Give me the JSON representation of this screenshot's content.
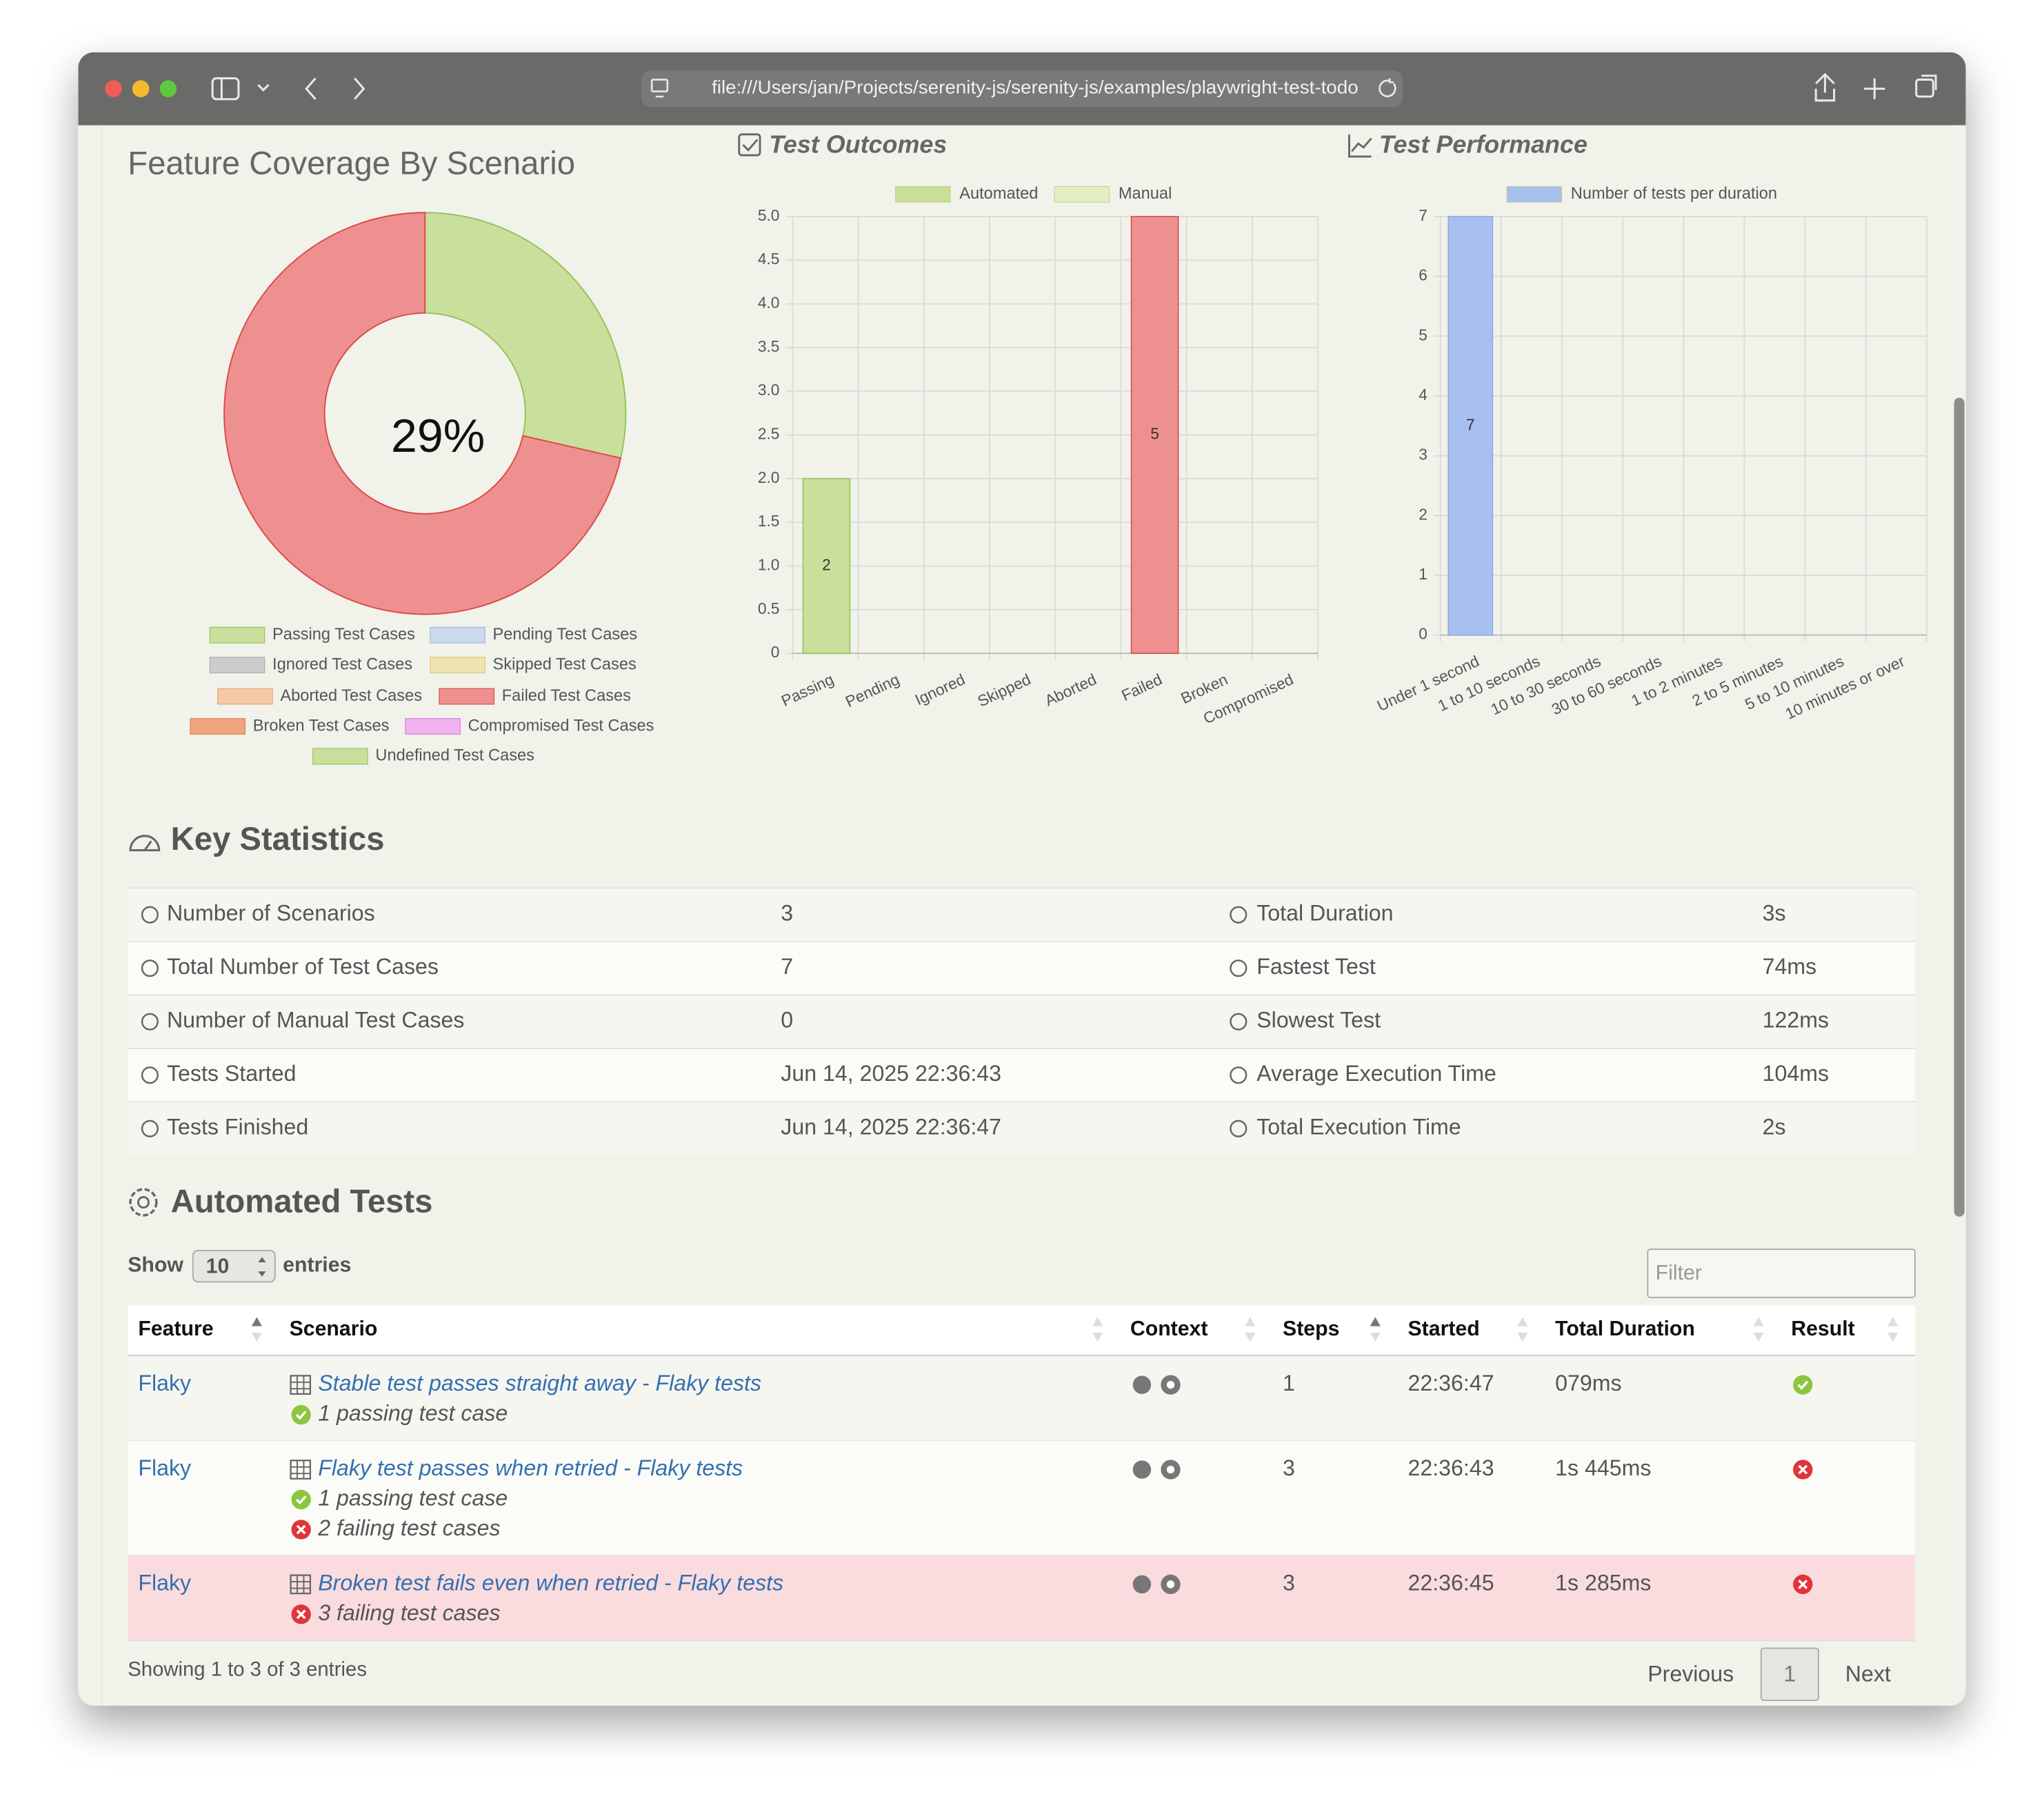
{
  "browser": {
    "url": "file:///Users/jan/Projects/serenity-js/serenity-js/examples/playwright-test-todo"
  },
  "coverage": {
    "title": "Feature Coverage By Scenario",
    "type": "pie",
    "center_label": "29%",
    "categories": [
      "Passing Test Cases",
      "Pending Test Cases",
      "Ignored Test Cases",
      "Skipped Test Cases",
      "Aborted Test Cases",
      "Failed Test Cases",
      "Broken Test Cases",
      "Compromised Test Cases",
      "Undefined Test Cases"
    ],
    "values": [
      2,
      0,
      0,
      0,
      0,
      5,
      0,
      0,
      0
    ],
    "colors": [
      "#cadf9c",
      "#c9d9ee",
      "#cccccc",
      "#efe4b0",
      "#f6c9a6",
      "#ef9090",
      "#f1a480",
      "#f3b2f0",
      "#cadf9c"
    ],
    "borders": [
      "#93c25a",
      "#9fb8dd",
      "#aaaaaa",
      "#d8c67a",
      "#e9a577",
      "#d94848",
      "#e07a50",
      "#d97bd5",
      "#93c25a"
    ]
  },
  "outcomes": {
    "title": "Test Outcomes",
    "type": "bar",
    "categories": [
      "Passing",
      "Pending",
      "Ignored",
      "Skipped",
      "Aborted",
      "Failed",
      "Broken",
      "Compromised"
    ],
    "bar_colors": [
      "#cadf9c",
      "#c9d9ee",
      "#cccccc",
      "#efe4b0",
      "#f6c9a6",
      "#ef9090",
      "#f1a480",
      "#f3b2f0"
    ],
    "series": [
      {
        "name": "Automated",
        "color": "#c9df99",
        "values": [
          2,
          0,
          0,
          0,
          0,
          5,
          0,
          0
        ]
      },
      {
        "name": "Manual",
        "color": "#e2efc3",
        "values": [
          0,
          0,
          0,
          0,
          0,
          0,
          0,
          0
        ]
      }
    ],
    "ylim": [
      0,
      5
    ],
    "yticks": [
      0,
      0.5,
      {
        "value": 1,
        "label": "1.0"
      },
      1.5,
      {
        "value": 2,
        "label": "2.0"
      },
      2.5,
      {
        "value": 3,
        "label": "3.0"
      },
      3.5,
      {
        "value": 4,
        "label": "4.0"
      },
      4.5,
      {
        "value": 5,
        "label": "5.0"
      }
    ],
    "grid": true
  },
  "performance": {
    "title": "Test Performance",
    "type": "bar",
    "categories": [
      "Under 1 second",
      "1 to 10 seconds",
      "10 to 30 seconds",
      "30 to 60 seconds",
      "1 to 2 minutes",
      "2 to 5 minutes",
      "5 to 10 minutes",
      "10 minutes or over"
    ],
    "series": [
      {
        "name": "Number of tests per duration",
        "color": "#a8c0f0",
        "values": [
          7,
          0,
          0,
          0,
          0,
          0,
          0,
          0
        ]
      }
    ],
    "ylim": [
      0,
      7
    ],
    "yticks": [
      0,
      1,
      2,
      3,
      4,
      5,
      6,
      7
    ],
    "grid": true
  },
  "stats": {
    "title": "Key Statistics",
    "rows": [
      [
        "Number of Scenarios",
        "3",
        "Total Duration",
        "3s"
      ],
      [
        "Total Number of Test Cases",
        "7",
        "Fastest Test",
        "74ms"
      ],
      [
        "Number of Manual Test Cases",
        "0",
        "Slowest Test",
        "122ms"
      ],
      [
        "Tests Started",
        "Jun 14, 2025 22:36:43",
        "Average Execution Time",
        "104ms"
      ],
      [
        "Tests Finished",
        "Jun 14, 2025 22:36:47",
        "Total Execution Time",
        "2s"
      ]
    ]
  },
  "tests": {
    "title": "Automated Tests",
    "show": "Show",
    "length": "10",
    "entries": "entries",
    "filter": "Filter",
    "columns": [
      "Feature",
      "Scenario",
      "Context",
      "Steps",
      "Started",
      "Total Duration",
      "Result"
    ],
    "rows": [
      {
        "feature": "Flaky",
        "scenario": "Stable test passes straight away - Flaky tests",
        "outcomes": [
          {
            "status": "passing",
            "text": "1 passing test case"
          }
        ],
        "steps": "1",
        "started": "22:36:47",
        "duration": "079ms",
        "result": "passing"
      },
      {
        "feature": "Flaky",
        "scenario": "Flaky test passes when retried - Flaky tests",
        "outcomes": [
          {
            "status": "passing",
            "text": "1 passing test case"
          },
          {
            "status": "failing",
            "text": "2 failing test cases"
          }
        ],
        "steps": "3",
        "started": "22:36:43",
        "duration": "1s 445ms",
        "result": "failing"
      },
      {
        "feature": "Flaky",
        "scenario": "Broken test fails even when retried - Flaky tests",
        "outcomes": [
          {
            "status": "failing",
            "text": "3 failing test cases"
          }
        ],
        "steps": "3",
        "started": "22:36:45",
        "duration": "1s 285ms",
        "result": "failing",
        "highlighted": true
      }
    ],
    "info": "Showing 1 to 3 of 3 entries",
    "pagination": [
      "Previous",
      "1",
      "Next"
    ]
  }
}
